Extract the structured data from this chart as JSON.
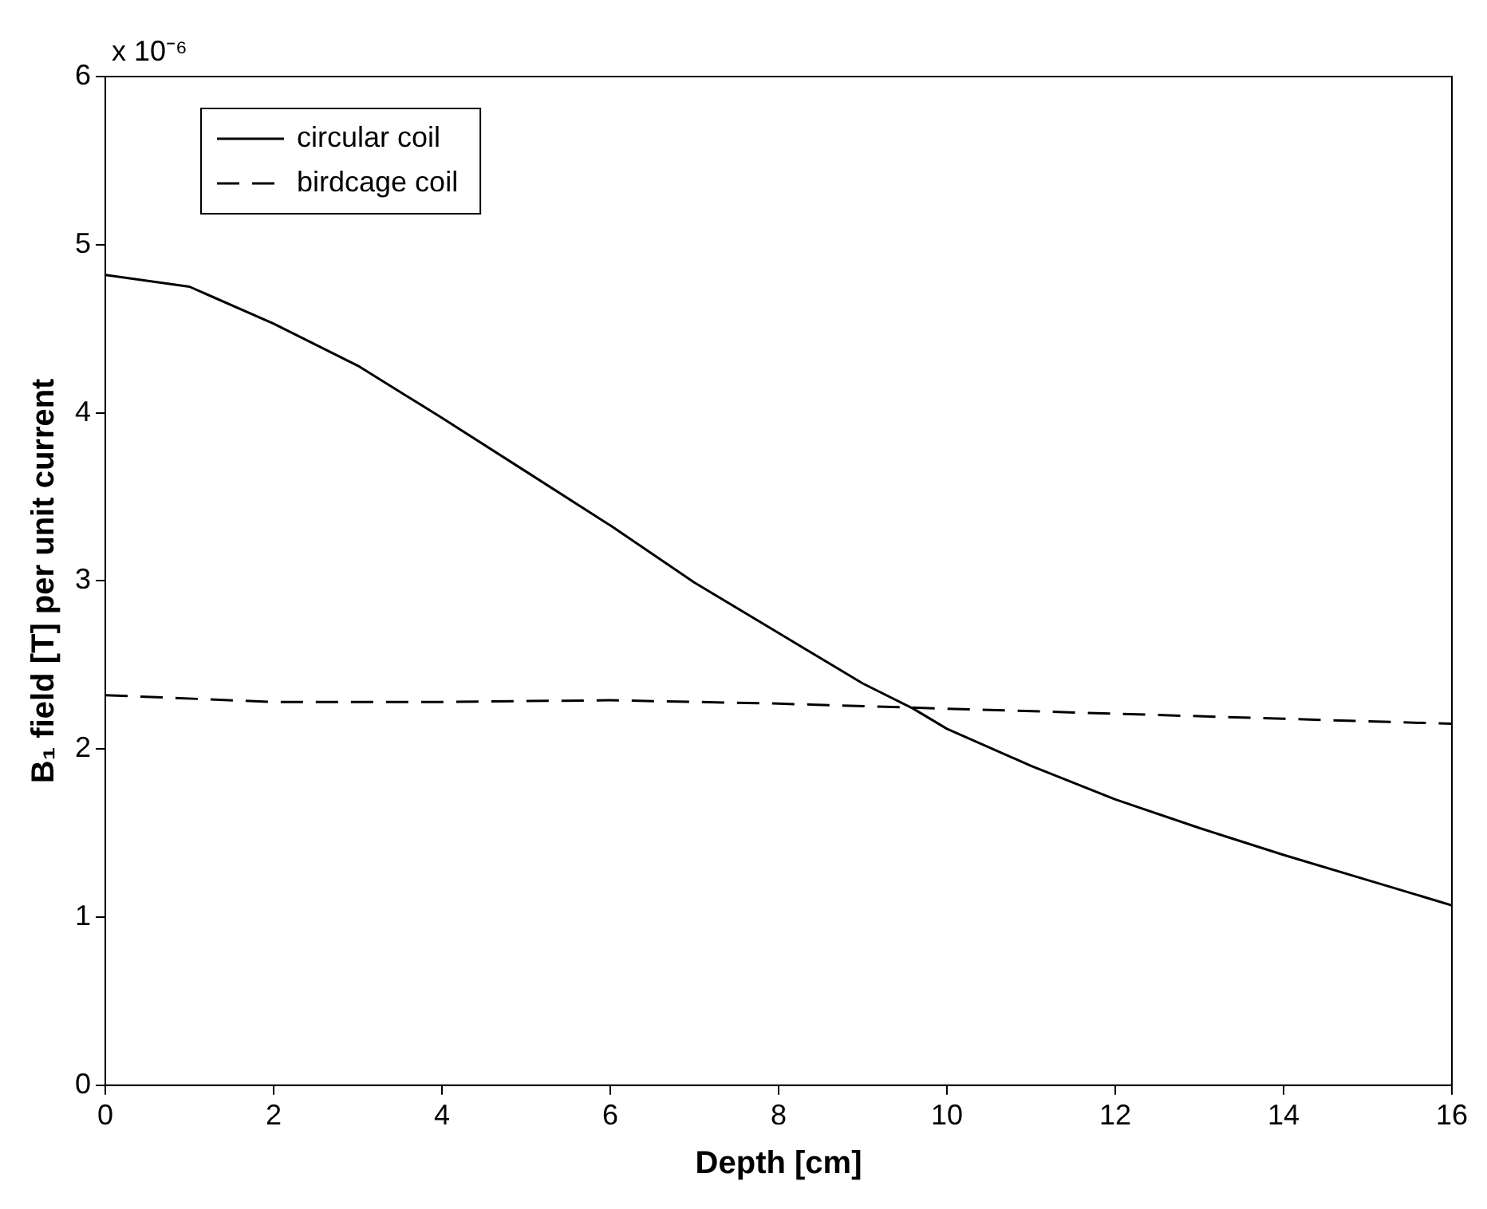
{
  "chart_data": {
    "type": "line",
    "xlabel": "Depth [cm]",
    "ylabel": "B₁ field [T] per unit current",
    "annotations": [
      "x 10⁻⁶"
    ],
    "x": [
      0,
      1,
      2,
      3,
      4,
      5,
      6,
      7,
      8,
      9,
      9.6,
      10,
      11,
      12,
      13,
      14,
      15,
      16
    ],
    "xlim": [
      0,
      16
    ],
    "xticks": [
      0,
      2,
      4,
      6,
      8,
      10,
      12,
      14,
      16
    ],
    "ylim": [
      0,
      6
    ],
    "yticks": [
      0,
      1,
      2,
      3,
      4,
      5,
      6
    ],
    "grid": false,
    "legend": "top left",
    "marker": "none",
    "series": [
      {
        "name": "circular coil",
        "color": "#000000",
        "line_style": "solid",
        "values": [
          4.82,
          4.75,
          4.53,
          4.28,
          3.97,
          3.65,
          3.33,
          2.99,
          2.69,
          2.39,
          2.24,
          2.12,
          1.9,
          1.7,
          1.53,
          1.37,
          1.22,
          1.07
        ]
      },
      {
        "name": "birdcage coil",
        "color": "#000000",
        "line_style": "dashed",
        "x": [
          0,
          2,
          4,
          6,
          8,
          10,
          12,
          14,
          16
        ],
        "values": [
          2.32,
          2.28,
          2.28,
          2.29,
          2.27,
          2.24,
          2.21,
          2.18,
          2.15
        ]
      }
    ]
  }
}
